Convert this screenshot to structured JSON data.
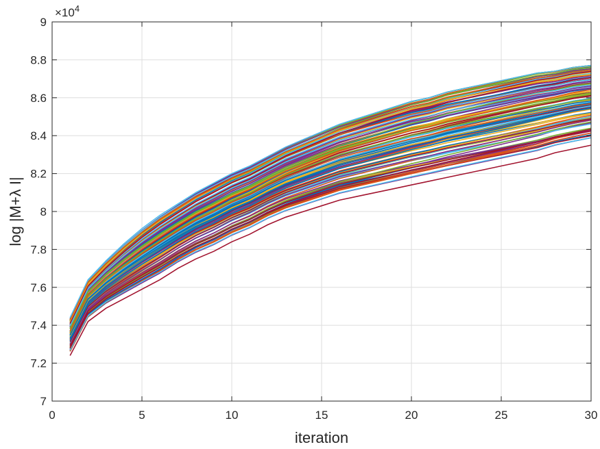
{
  "chart_data": {
    "type": "line",
    "title": "",
    "xlabel": "iteration",
    "ylabel": "log |M+λ I|",
    "y_exponent_label": "×10",
    "y_exponent_power": "4",
    "xlim": [
      0,
      30
    ],
    "ylim": [
      7.0,
      9.0
    ],
    "xticks": [
      0,
      5,
      10,
      15,
      20,
      25,
      30
    ],
    "xtick_labels": [
      "0",
      "5",
      "10",
      "15",
      "20",
      "25",
      "30"
    ],
    "yticks": [
      7.0,
      7.2,
      7.4,
      7.6,
      7.8,
      8.0,
      8.2,
      8.4,
      8.6,
      8.8,
      9.0
    ],
    "ytick_labels": [
      "7",
      "7.2",
      "7.4",
      "7.6",
      "7.8",
      "8",
      "8.2",
      "8.4",
      "8.6",
      "8.8",
      "9"
    ],
    "grid": true,
    "legend": "none",
    "series_count": 120,
    "x": [
      1,
      2,
      3,
      4,
      5,
      6,
      7,
      8,
      9,
      10,
      11,
      12,
      13,
      14,
      15,
      16,
      17,
      18,
      19,
      20,
      21,
      22,
      23,
      24,
      25,
      26,
      27,
      28,
      29,
      30
    ],
    "envelope": {
      "start_range": [
        7.24,
        7.44
      ],
      "end_range": [
        8.35,
        8.77
      ],
      "upper_series": [
        7.44,
        7.64,
        7.74,
        7.83,
        7.91,
        7.98,
        8.04,
        8.1,
        8.15,
        8.2,
        8.24,
        8.29,
        8.34,
        8.38,
        8.42,
        8.46,
        8.49,
        8.52,
        8.55,
        8.58,
        8.6,
        8.63,
        8.65,
        8.67,
        8.69,
        8.71,
        8.73,
        8.74,
        8.76,
        8.77
      ],
      "lower_series": [
        7.24,
        7.42,
        7.49,
        7.54,
        7.59,
        7.64,
        7.7,
        7.75,
        7.79,
        7.84,
        7.88,
        7.93,
        7.97,
        8.0,
        8.03,
        8.06,
        8.08,
        8.1,
        8.12,
        8.14,
        8.16,
        8.18,
        8.2,
        8.22,
        8.24,
        8.26,
        8.28,
        8.31,
        8.33,
        8.35
      ]
    },
    "palette": [
      "#0072BD",
      "#D95319",
      "#EDB120",
      "#7E2F8E",
      "#77AC30",
      "#4DBEEE",
      "#A2142F"
    ]
  }
}
